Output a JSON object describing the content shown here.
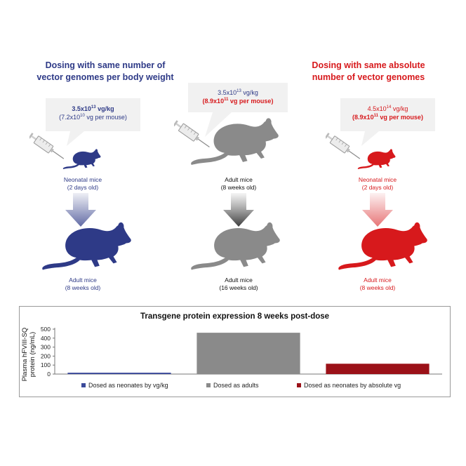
{
  "left": {
    "heading_line1": "Dosing with same number of",
    "heading_line2": "vector genomes per body weight",
    "dose_main_base": "3.5x10",
    "dose_main_exp": "13",
    "dose_main_unit": " vg/kg",
    "dose_sub_base": "(7.2x10",
    "dose_sub_exp": "10",
    "dose_sub_unit": " vg per mouse)",
    "start_line1": "Neonatal mice",
    "start_line2": "(2 days old)",
    "end_line1": "Adult mice",
    "end_line2": "(8 weeks old)",
    "color": "#2e3a87"
  },
  "middle": {
    "dose_main_base": "3.5x10",
    "dose_main_exp": "13",
    "dose_main_unit": " vg/kg",
    "dose_sub_base": "(8.9x10",
    "dose_sub_exp": "11",
    "dose_sub_unit": " vg per mouse)",
    "start_line1": "Adult mice",
    "start_line2": "(8 weeks old)",
    "end_line1": "Adult mice",
    "end_line2": "(16 weeks old)",
    "color": "#8a8a8a"
  },
  "right": {
    "heading_line1": "Dosing with same absolute",
    "heading_line2": "number of vector genomes",
    "dose_main_base": "4.5x10",
    "dose_main_exp": "14",
    "dose_main_unit": " vg/kg",
    "dose_sub_base": "(8.9x10",
    "dose_sub_exp": "11",
    "dose_sub_unit": " vg per mouse)",
    "start_line1": "Neonatal mice",
    "start_line2": "(2 days old)",
    "end_line1": "Adult mice",
    "end_line2": "(8 weeks old)",
    "color": "#d7191c"
  },
  "chart_data": {
    "type": "bar",
    "title": "Transgene protein expression 8 weeks post-dose",
    "ylabel_line1": "Plasma hFVIII-SQ",
    "ylabel_line2": "protein (ng/mL)",
    "ylim": [
      0,
      500
    ],
    "yticks": [
      0,
      100,
      200,
      300,
      400,
      500
    ],
    "grid": false,
    "legend_position": "bottom",
    "series": [
      {
        "name": "Dosed as neonates by vg/kg",
        "value": 15,
        "color": "#3b4a9a"
      },
      {
        "name": "Dosed as adults",
        "value": 460,
        "color": "#8a8a8a"
      },
      {
        "name": "Dosed as neonates by absolute vg",
        "value": 115,
        "color": "#9b1118"
      }
    ]
  }
}
